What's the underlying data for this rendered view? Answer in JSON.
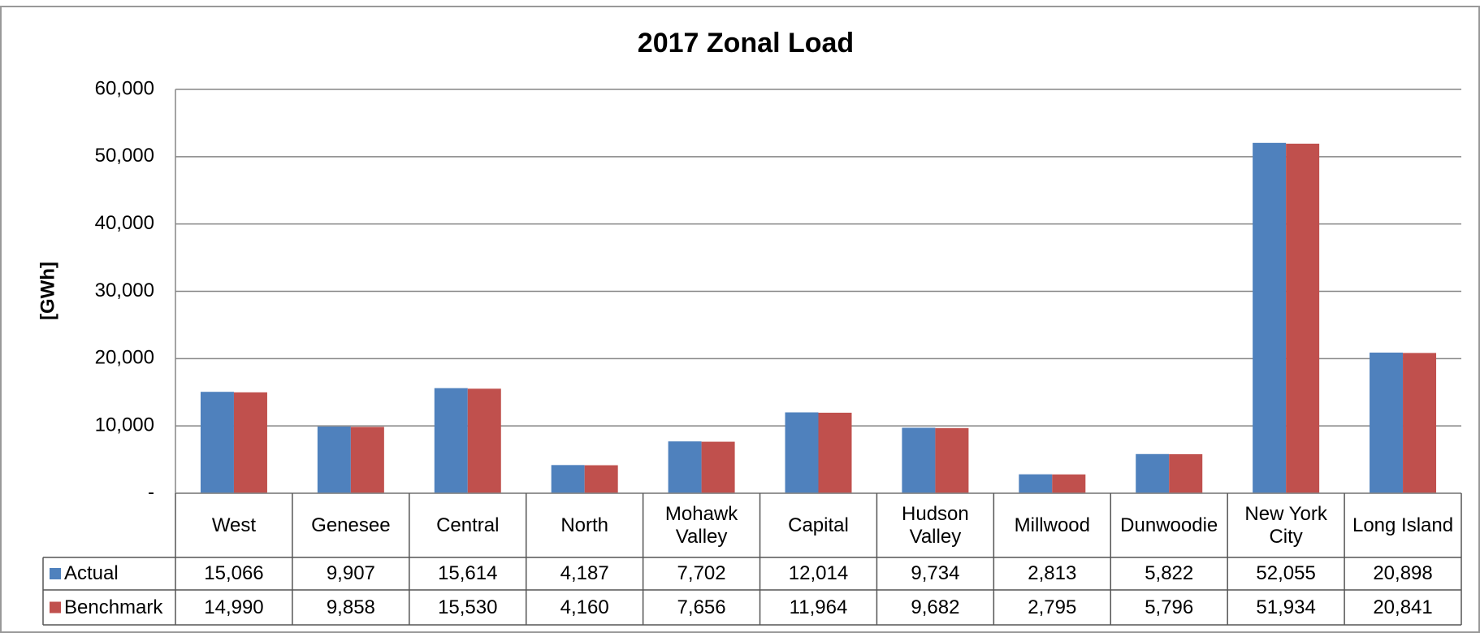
{
  "chart_data": {
    "type": "bar",
    "title": "2017 Zonal Load",
    "y_label": "[GWh]",
    "categories": [
      "West",
      "Genesee",
      "Central",
      "North",
      "Mohawk Valley",
      "Capital",
      "Hudson Valley",
      "Millwood",
      "Dunwoodie",
      "New York City",
      "Long Island"
    ],
    "series": [
      {
        "name": "Actual",
        "color": "#4f81bd",
        "values": [
          15066,
          9907,
          15614,
          4187,
          7702,
          12014,
          9734,
          2813,
          5822,
          52055,
          20898
        ],
        "value_labels": [
          "15,066",
          "9,907",
          "15,614",
          "4,187",
          "7,702",
          "12,014",
          "9,734",
          "2,813",
          "5,822",
          "52,055",
          "20,898"
        ]
      },
      {
        "name": "Benchmark",
        "color": "#c0504d",
        "values": [
          14990,
          9858,
          15530,
          4160,
          7656,
          11964,
          9682,
          2795,
          5796,
          51934,
          20841
        ],
        "value_labels": [
          "14,990",
          "9,858",
          "15,530",
          "4,160",
          "7,656",
          "11,964",
          "9,682",
          "2,795",
          "5,796",
          "51,934",
          "20,841"
        ]
      }
    ],
    "ylim": [
      0,
      60000
    ],
    "yticks": [
      {
        "value": 0,
        "label": "-"
      },
      {
        "value": 10000,
        "label": "10,000"
      },
      {
        "value": 20000,
        "label": "20,000"
      },
      {
        "value": 30000,
        "label": "30,000"
      },
      {
        "value": 40000,
        "label": "40,000"
      },
      {
        "value": 50000,
        "label": "50,000"
      },
      {
        "value": 60000,
        "label": "60,000"
      }
    ],
    "grid": true,
    "data_table": true
  }
}
